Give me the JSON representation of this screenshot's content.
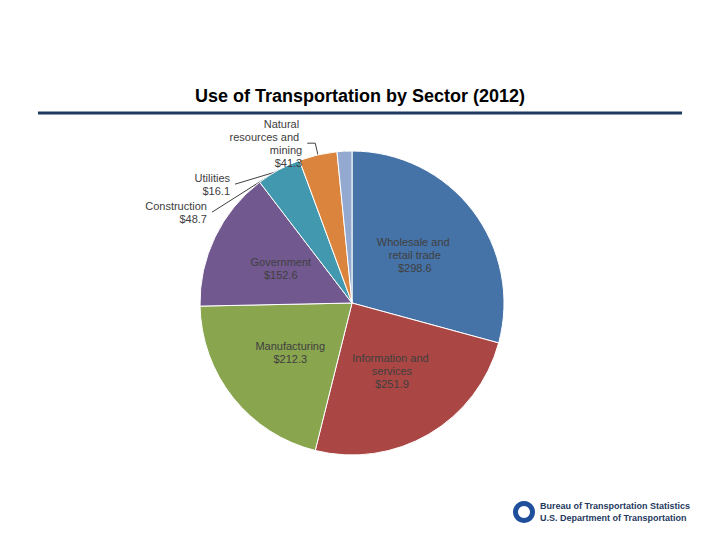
{
  "chart_data": {
    "type": "pie",
    "title": "Use of Transportation by Sector (2012)",
    "categories": [
      "Wholesale and retail trade",
      "Information and services",
      "Manufacturing",
      "Government",
      "Construction",
      "Natural resources and mining",
      "Utilities"
    ],
    "values": [
      298.6,
      251.9,
      212.3,
      152.6,
      48.7,
      41.3,
      16.1
    ],
    "value_labels": [
      "$298.6",
      "$251.9",
      "$212.3",
      "$152.6",
      "$48.7",
      "$41.3",
      "$16.1"
    ],
    "colors": [
      "#4572A7",
      "#AA4643",
      "#89A54E",
      "#71588F",
      "#4198AF",
      "#DB843D",
      "#93A9CF"
    ],
    "data_labels": true,
    "annotations": [
      "Bureau of Transportation Statistics",
      "U.S. Department of Transportation"
    ]
  }
}
